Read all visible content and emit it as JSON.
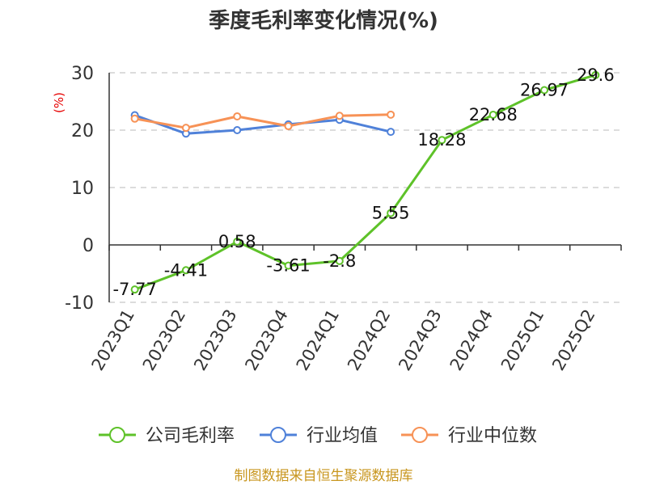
{
  "chart_data": {
    "type": "line",
    "title": "季度毛利率变化情况(%)",
    "ylabel": "(%)",
    "ylim": [
      -10,
      30
    ],
    "yticks": [
      -10,
      0,
      10,
      20,
      30
    ],
    "grid": true,
    "legend_position": "bottom",
    "categories": [
      "2023Q1",
      "2023Q2",
      "2023Q3",
      "2023Q4",
      "2024Q1",
      "2024Q2",
      "2024Q3",
      "2024Q4",
      "2025Q1",
      "2025Q2"
    ],
    "series": [
      {
        "name": "公司毛利率",
        "color": "#5ec229",
        "values": [
          -7.77,
          -4.41,
          0.58,
          -3.61,
          -2.8,
          5.55,
          18.28,
          22.68,
          26.97,
          29.6
        ],
        "labels": [
          "-7.77",
          "-4.41",
          "0.58",
          "-3.61",
          "-2.8",
          "5.55",
          "18.28",
          "22.68",
          "26.97",
          "29.6"
        ]
      },
      {
        "name": "行业均值",
        "color": "#4f81d9",
        "values": [
          22.6,
          19.4,
          20.0,
          21.0,
          21.8,
          19.7,
          null,
          null,
          null,
          null
        ]
      },
      {
        "name": "行业中位数",
        "color": "#f79256",
        "values": [
          22.0,
          20.4,
          22.4,
          20.7,
          22.5,
          22.7,
          null,
          null,
          null,
          null
        ]
      }
    ]
  },
  "footer": {
    "source": "制图数据来自恒生聚源数据库"
  }
}
